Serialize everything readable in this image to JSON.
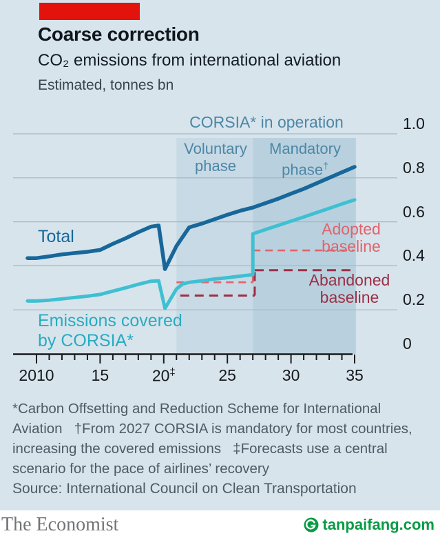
{
  "header": {
    "title": "Coarse correction",
    "subtitle": "CO₂ emissions from international aviation",
    "note": "Estimated, tonnes bn"
  },
  "colors": {
    "background": "#d7e4ec",
    "economist_red": "#e3120b",
    "band_voluntary": "#c8dae5",
    "band_mandatory": "#b9d1de",
    "grid": "#a3b6c2",
    "axis": "#1a1a1a",
    "total_line": "#17679a",
    "covered_line": "#3fc0d2",
    "adopted_baseline": "#e2626b",
    "abandoned_baseline": "#9b2f45",
    "phase_label": "#4d86a6",
    "footnote_text": "#4e5b66",
    "watermark_green": "#079b44"
  },
  "annotations": {
    "band_group": "CORSIA* in operation",
    "voluntary_line1": "Voluntary",
    "voluntary_line2": "phase",
    "mandatory_line1": "Mandatory",
    "mandatory_line2": "phase",
    "mandatory_sup": "†",
    "total": "Total",
    "covered_line1": "Emissions covered",
    "covered_line2": "by CORSIA*",
    "adopted_line1": "Adopted",
    "adopted_line2": "baseline",
    "abandoned_line1": "Abandoned",
    "abandoned_line2": "baseline"
  },
  "chart_data": {
    "type": "line",
    "title": "CO₂ emissions from international aviation",
    "ylabel": "tonnes bn (estimated)",
    "xlim": [
      2009.3,
      2038
    ],
    "ylim": [
      0,
      1.0
    ],
    "legend_position": "inline-labels",
    "grid": true,
    "x_axis": {
      "ticks": [
        {
          "label": "2010",
          "year": 2010
        },
        {
          "label": "15",
          "year": 2015
        },
        {
          "label": "20",
          "year": 2020,
          "sup": "‡"
        },
        {
          "label": "25",
          "year": 2025
        },
        {
          "label": "30",
          "year": 2030
        },
        {
          "label": "35",
          "year": 2035
        }
      ]
    },
    "y_axis": {
      "position": "right",
      "ticks": [
        {
          "label": "1.0",
          "value": 1.0
        },
        {
          "label": "0.8",
          "value": 0.8
        },
        {
          "label": "0.6",
          "value": 0.6
        },
        {
          "label": "0.4",
          "value": 0.4
        },
        {
          "label": "0.2",
          "value": 0.2
        },
        {
          "label": "0",
          "value": 0
        }
      ]
    },
    "bands": [
      {
        "label": "Voluntary phase",
        "from": 2021,
        "to": 2027,
        "color": "#c8dae5"
      },
      {
        "label": "Mandatory phase†",
        "from": 2027,
        "to": 2035.1,
        "color": "#b9d1de"
      }
    ],
    "series": [
      {
        "name": "Total",
        "color": "#17679a",
        "width": 5.5,
        "points": [
          [
            2010,
            0.435
          ],
          [
            2011,
            0.443
          ],
          [
            2012,
            0.452
          ],
          [
            2013,
            0.458
          ],
          [
            2014,
            0.464
          ],
          [
            2015,
            0.472
          ],
          [
            2016,
            0.5
          ],
          [
            2017,
            0.525
          ],
          [
            2018,
            0.553
          ],
          [
            2019,
            0.578
          ],
          [
            2019.6,
            0.583
          ],
          [
            2020.1,
            0.385
          ],
          [
            2021,
            0.49
          ],
          [
            2022,
            0.575
          ],
          [
            2023,
            0.592
          ],
          [
            2024,
            0.612
          ],
          [
            2025,
            0.632
          ],
          [
            2026,
            0.65
          ],
          [
            2027,
            0.665
          ],
          [
            2028,
            0.685
          ],
          [
            2029,
            0.705
          ],
          [
            2030,
            0.728
          ],
          [
            2031,
            0.75
          ],
          [
            2032,
            0.775
          ],
          [
            2033,
            0.8
          ],
          [
            2034,
            0.825
          ],
          [
            2035,
            0.85
          ]
        ]
      },
      {
        "name": "Emissions covered by CORSIA*",
        "color": "#3fc0d2",
        "width": 5,
        "points": [
          [
            2010,
            0.24
          ],
          [
            2011,
            0.244
          ],
          [
            2012,
            0.25
          ],
          [
            2013,
            0.256
          ],
          [
            2014,
            0.262
          ],
          [
            2015,
            0.27
          ],
          [
            2016,
            0.285
          ],
          [
            2017,
            0.3
          ],
          [
            2018,
            0.316
          ],
          [
            2019,
            0.33
          ],
          [
            2019.6,
            0.332
          ],
          [
            2020.1,
            0.207
          ],
          [
            2021,
            0.295
          ],
          [
            2021.5,
            0.318
          ],
          [
            2022,
            0.325
          ],
          [
            2023,
            0.332
          ],
          [
            2024,
            0.34
          ],
          [
            2025,
            0.346
          ],
          [
            2026,
            0.353
          ],
          [
            2027,
            0.36
          ],
          [
            2027,
            0.545
          ],
          [
            2028,
            0.565
          ],
          [
            2029,
            0.584
          ],
          [
            2030,
            0.603
          ],
          [
            2031,
            0.622
          ],
          [
            2032,
            0.642
          ],
          [
            2033,
            0.661
          ],
          [
            2034,
            0.681
          ],
          [
            2035,
            0.7
          ]
        ]
      },
      {
        "name": "Adopted baseline",
        "color": "#e2626b",
        "style": "dashed",
        "width": 2.6,
        "dash": "11 7",
        "segments": [
          [
            [
              2021,
              0.325
            ],
            [
              2027,
              0.325
            ]
          ],
          [
            [
              2027,
              0.325
            ],
            [
              2027,
              0.47
            ]
          ],
          [
            [
              2027,
              0.47
            ],
            [
              2035,
              0.47
            ]
          ]
        ]
      },
      {
        "name": "Abandoned baseline",
        "color": "#9b2f45",
        "style": "dashed",
        "width": 3,
        "dash": "13 8",
        "segments": [
          [
            [
              2021.3,
              0.265
            ],
            [
              2027.15,
              0.265
            ]
          ],
          [
            [
              2027.15,
              0.265
            ],
            [
              2027.15,
              0.38
            ]
          ],
          [
            [
              2027.15,
              0.38
            ],
            [
              2035,
              0.38
            ]
          ]
        ]
      }
    ]
  },
  "footnotes": {
    "lines": [
      "*Carbon Offsetting and Reduction Scheme for International",
      "Aviation   †From 2027 CORSIA is mandatory for most countries,",
      "increasing the covered emissions   ‡Forecasts use a central",
      "scenario for the pace of airlines’ recovery"
    ]
  },
  "source": "Source: International Council on Clean Transportation",
  "footer": {
    "economist_wordmark": "The Economist",
    "watermark": "tanpaifang.com"
  }
}
